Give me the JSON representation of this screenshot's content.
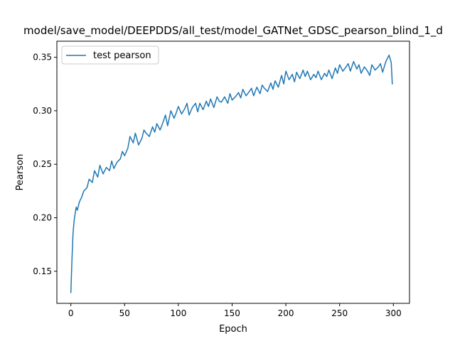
{
  "chart_data": {
    "type": "line",
    "title": "model/save_model/DEEPDDS/all_test/model_GATNet_GDSC_pearson_blind_1_d",
    "xlabel": "Epoch",
    "ylabel": "Pearson",
    "xlim": [
      -13,
      315
    ],
    "ylim": [
      0.12,
      0.365
    ],
    "xticks": [
      0,
      50,
      100,
      150,
      200,
      250,
      300
    ],
    "yticks": [
      0.15,
      0.2,
      0.25,
      0.3,
      0.35
    ],
    "xtick_labels": [
      "0",
      "50",
      "100",
      "150",
      "200",
      "250",
      "300"
    ],
    "ytick_labels": [
      "0.15",
      "0.20",
      "0.25",
      "0.30",
      "0.35"
    ],
    "grid": false,
    "legend_position": "upper-left",
    "series": [
      {
        "name": "test pearson",
        "color": "#1f77b4",
        "x": [
          0,
          1,
          2,
          3,
          4,
          5,
          6,
          8,
          10,
          12,
          15,
          17,
          20,
          22,
          25,
          27,
          30,
          33,
          36,
          38,
          40,
          43,
          46,
          48,
          50,
          53,
          55,
          58,
          60,
          63,
          66,
          68,
          70,
          73,
          76,
          78,
          80,
          83,
          86,
          88,
          90,
          93,
          96,
          98,
          100,
          103,
          106,
          108,
          110,
          113,
          116,
          118,
          120,
          123,
          126,
          128,
          130,
          133,
          136,
          138,
          140,
          143,
          146,
          148,
          150,
          153,
          156,
          158,
          160,
          163,
          166,
          168,
          170,
          173,
          176,
          178,
          180,
          183,
          186,
          188,
          190,
          193,
          196,
          198,
          200,
          203,
          206,
          208,
          210,
          213,
          216,
          218,
          220,
          223,
          226,
          228,
          230,
          233,
          236,
          238,
          240,
          243,
          246,
          248,
          250,
          253,
          256,
          258,
          260,
          263,
          266,
          268,
          270,
          273,
          276,
          278,
          280,
          283,
          286,
          288,
          290,
          293,
          296,
          298,
          299
        ],
        "y": [
          0.13,
          0.16,
          0.185,
          0.197,
          0.204,
          0.21,
          0.207,
          0.215,
          0.219,
          0.225,
          0.228,
          0.236,
          0.233,
          0.244,
          0.238,
          0.249,
          0.241,
          0.247,
          0.244,
          0.253,
          0.246,
          0.252,
          0.255,
          0.262,
          0.258,
          0.265,
          0.276,
          0.27,
          0.279,
          0.268,
          0.274,
          0.282,
          0.279,
          0.276,
          0.285,
          0.28,
          0.288,
          0.282,
          0.29,
          0.296,
          0.286,
          0.3,
          0.293,
          0.298,
          0.304,
          0.297,
          0.302,
          0.307,
          0.296,
          0.303,
          0.307,
          0.299,
          0.307,
          0.301,
          0.309,
          0.304,
          0.311,
          0.303,
          0.313,
          0.309,
          0.308,
          0.313,
          0.307,
          0.316,
          0.31,
          0.313,
          0.317,
          0.312,
          0.32,
          0.314,
          0.318,
          0.321,
          0.314,
          0.322,
          0.316,
          0.324,
          0.321,
          0.318,
          0.326,
          0.32,
          0.328,
          0.322,
          0.333,
          0.325,
          0.337,
          0.329,
          0.334,
          0.327,
          0.336,
          0.33,
          0.338,
          0.332,
          0.337,
          0.329,
          0.334,
          0.331,
          0.337,
          0.329,
          0.335,
          0.332,
          0.338,
          0.33,
          0.34,
          0.335,
          0.343,
          0.337,
          0.341,
          0.344,
          0.337,
          0.346,
          0.339,
          0.343,
          0.335,
          0.341,
          0.337,
          0.333,
          0.343,
          0.338,
          0.341,
          0.344,
          0.336,
          0.346,
          0.352,
          0.345,
          0.325
        ]
      }
    ]
  }
}
